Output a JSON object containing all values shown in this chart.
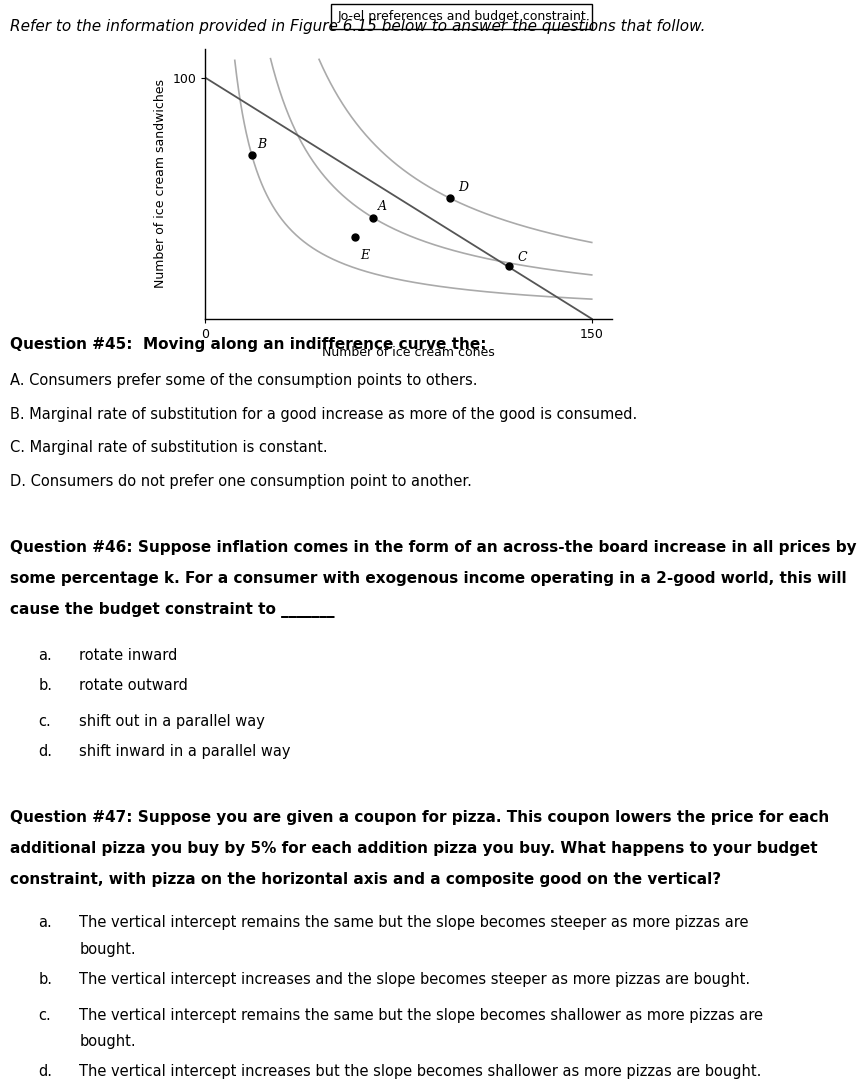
{
  "header": "Refer to the information provided in Figure 6.15 below to answer the questions that follow.",
  "chart_title": "Jo-el preferences and budget constraint",
  "x_label": "Number of ice cream cones",
  "y_label": "Number of ice cream sandwiches",
  "x_max": 150,
  "y_max": 100,
  "points": {
    "B": [
      18,
      68
    ],
    "A": [
      65,
      42
    ],
    "E": [
      58,
      34
    ],
    "D": [
      95,
      50
    ],
    "C": [
      118,
      22
    ]
  },
  "q45_title": "Question #45:  Moving along an indifference curve the:",
  "q45_A": "A. Consumers prefer some of the consumption points to others.",
  "q45_B": "B. Marginal rate of substitution for a good increase as more of the good is consumed.",
  "q45_C": "C. Marginal rate of substitution is constant.",
  "q45_D": "D. Consumers do not prefer one consumption point to another.",
  "q46_title": "Question #46: Suppose inflation comes in the form of an across-the board increase in all prices by some percentage k. For a consumer with exogenous income operating in a 2-good world, this will cause the budget constraint to _______",
  "q46_a": "rotate inward",
  "q46_b": "rotate outward",
  "q46_c": "shift out in a parallel way",
  "q46_d": "shift inward in a parallel way",
  "q47_title": "Question #47: Suppose you are given a coupon for pizza. This coupon lowers the price for each additional pizza you buy by 5% for each addition pizza you buy. What happens to your budget constraint, with pizza on the horizontal axis and a composite good on the vertical?",
  "q47_a": "The vertical intercept remains the same but the slope becomes steeper as more pizzas are\nbought.",
  "q47_b": "The vertical intercept increases and the slope becomes steeper as more pizzas are bought.",
  "q47_c": "The vertical intercept remains the same but the slope becomes shallower as more pizzas are\nbought.",
  "q47_d": "The vertical intercept increases but the slope becomes shallower as more pizzas are bought.",
  "bg_color": "#ffffff",
  "curve_color": "#aaaaaa",
  "budget_line_color": "#555555",
  "point_color": "#000000",
  "header_fontsize": 11,
  "q_bold_fontsize": 11,
  "body_fontsize": 10.5
}
